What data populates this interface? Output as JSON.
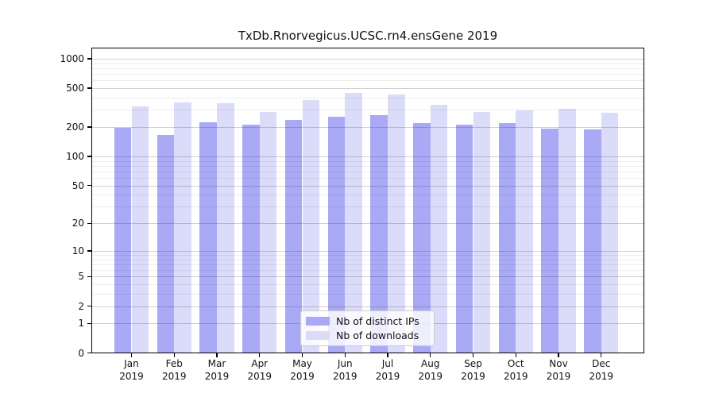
{
  "title": "TxDb.Rnorvegicus.UCSC.rn4.ensGene 2019",
  "chart_data": {
    "type": "bar",
    "title": "TxDb.Rnorvegicus.UCSC.rn4.ensGene 2019",
    "y_scale": "log1p",
    "grid": "on",
    "legend_position": "lower-center-inside",
    "categories": [
      "Jan",
      "Feb",
      "Mar",
      "Apr",
      "May",
      "Jun",
      "Jul",
      "Aug",
      "Sep",
      "Oct",
      "Nov",
      "Dec"
    ],
    "x_tick_year": "2019",
    "y_ticks": [
      0,
      1,
      2,
      5,
      10,
      20,
      50,
      100,
      200,
      500,
      1000
    ],
    "y_minor_gridlines": [
      3,
      4,
      6,
      7,
      8,
      9,
      30,
      40,
      60,
      70,
      80,
      90,
      300,
      400,
      600,
      700,
      800,
      900
    ],
    "ylim": [
      0,
      1300
    ],
    "series": [
      {
        "name": "Nb of distinct IPs",
        "color": "#a9a9f6",
        "values": [
          197,
          167,
          225,
          212,
          237,
          258,
          263,
          222,
          210,
          222,
          194,
          188
        ]
      },
      {
        "name": "Nb of downloads",
        "color": "#dbdbfa",
        "values": [
          326,
          360,
          349,
          287,
          382,
          445,
          430,
          336,
          287,
          299,
          307,
          280
        ]
      }
    ]
  }
}
